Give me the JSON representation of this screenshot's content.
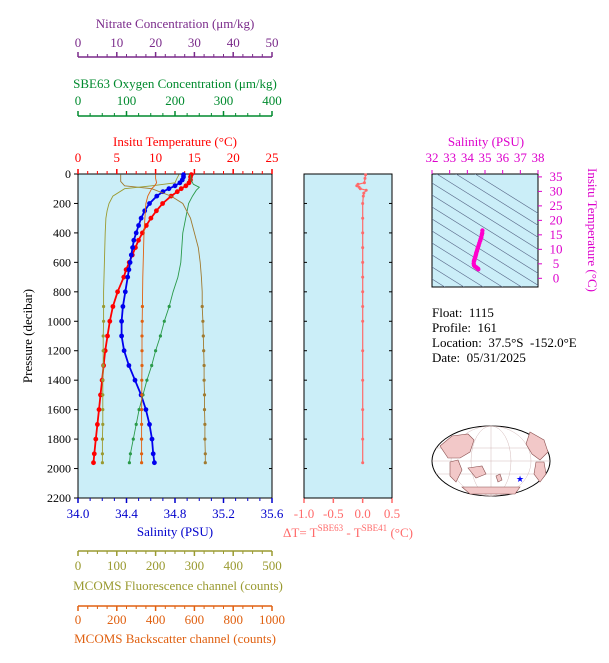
{
  "chart_data": [
    {
      "type": "line",
      "panel": "main-profile",
      "y_axis": {
        "label": "Pressure (decibar)",
        "range": [
          0,
          2200
        ],
        "reversed": true,
        "ticks": [
          0,
          200,
          400,
          600,
          800,
          1000,
          1200,
          1400,
          1600,
          1800,
          2000,
          2200
        ]
      },
      "axes": {
        "temperature": {
          "title": "Insitu Temperature (°C)",
          "range": [
            0,
            25
          ],
          "ticks": [
            0,
            5,
            10,
            15,
            20,
            25
          ],
          "color": "#ff0000",
          "position": "top"
        },
        "oxygen": {
          "title": "SBE63 Oxygen Concentration (μm/kg)",
          "range": [
            0,
            400
          ],
          "ticks": [
            0,
            100,
            200,
            300,
            400
          ],
          "color": "#008a2e",
          "position": "top"
        },
        "nitrate": {
          "title": "Nitrate Concentration (μm/kg)",
          "range": [
            0,
            50
          ],
          "ticks": [
            0,
            10,
            20,
            30,
            40,
            50
          ],
          "color": "#7a2a8a",
          "position": "top"
        },
        "salinity": {
          "title": "Salinity (PSU)",
          "range": [
            34.0,
            35.6
          ],
          "ticks": [
            "34.0",
            "34.4",
            "34.8",
            "35.2",
            "35.6"
          ],
          "color": "#0000cc",
          "position": "bottom"
        },
        "fluorescence": {
          "title": "MCOMS Fluorescence channel (counts)",
          "range": [
            0,
            500
          ],
          "ticks": [
            0,
            100,
            200,
            300,
            400,
            500
          ],
          "color": "#9a9a30",
          "position": "bottom"
        },
        "backscatter": {
          "title": "MCOMS Backscatter channel (counts)",
          "range": [
            0,
            1000
          ],
          "ticks": [
            0,
            200,
            400,
            600,
            800,
            1000
          ],
          "color": "#e06010",
          "position": "bottom"
        }
      },
      "series": [
        {
          "key": "temperature",
          "color": "#ff0000",
          "pressure": [
            5,
            20,
            40,
            60,
            80,
            100,
            120,
            150,
            200,
            250,
            300,
            350,
            400,
            450,
            500,
            550,
            600,
            650,
            700,
            800,
            900,
            1000,
            1100,
            1200,
            1300,
            1400,
            1500,
            1600,
            1700,
            1800,
            1900,
            1960
          ],
          "values": [
            14.6,
            14.5,
            14.5,
            14.3,
            13.9,
            13.3,
            12.8,
            12.0,
            10.9,
            10.1,
            9.4,
            8.8,
            8.3,
            7.8,
            7.4,
            7.0,
            6.6,
            6.2,
            5.9,
            5.1,
            4.5,
            4.1,
            3.8,
            3.5,
            3.3,
            3.1,
            2.9,
            2.7,
            2.5,
            2.3,
            2.1,
            2.0
          ]
        },
        {
          "key": "salinity",
          "color": "#0000ee",
          "pressure": [
            5,
            20,
            40,
            60,
            80,
            100,
            120,
            150,
            200,
            250,
            300,
            350,
            400,
            450,
            500,
            550,
            600,
            650,
            700,
            800,
            900,
            1000,
            1100,
            1200,
            1300,
            1400,
            1500,
            1600,
            1700,
            1800,
            1900,
            1960
          ],
          "values": [
            34.87,
            34.87,
            34.86,
            34.84,
            34.8,
            34.75,
            34.7,
            34.65,
            34.59,
            34.55,
            34.52,
            34.5,
            34.48,
            34.46,
            34.45,
            34.44,
            34.43,
            34.42,
            34.41,
            34.39,
            34.37,
            34.36,
            34.36,
            34.38,
            34.42,
            34.47,
            34.52,
            34.56,
            34.59,
            34.61,
            34.62,
            34.63
          ]
        },
        {
          "key": "oxygen",
          "color": "#2a9a4a",
          "thin": true,
          "pressure": [
            5,
            40,
            70,
            90,
            110,
            150,
            200,
            300,
            400,
            500,
            600,
            700,
            800,
            900,
            1000,
            1100,
            1200,
            1300,
            1400,
            1500,
            1600,
            1700,
            1800,
            1900,
            1960
          ],
          "values": [
            232,
            233,
            238,
            250,
            244,
            236,
            228,
            222,
            216,
            214,
            212,
            206,
            196,
            188,
            178,
            170,
            160,
            152,
            142,
            134,
            126,
            120,
            114,
            108,
            106
          ]
        },
        {
          "key": "nitrate",
          "color": "#a07a30",
          "thin": true,
          "pressure": [
            5,
            50,
            80,
            100,
            150,
            200,
            300,
            400,
            500,
            600,
            700,
            800,
            900,
            1000,
            1100,
            1200,
            1300,
            1400,
            1500,
            1600,
            1700,
            1800,
            1900,
            1960
          ],
          "values": [
            11,
            11,
            12,
            19,
            24,
            27,
            29,
            30,
            31,
            31.5,
            31.8,
            32,
            32,
            32.2,
            32.3,
            32.4,
            32.5,
            32.5,
            32.6,
            32.6,
            32.7,
            32.7,
            32.8,
            32.8
          ]
        },
        {
          "key": "fluorescence",
          "color": "#9a9a30",
          "thin": true,
          "pressure": [
            5,
            30,
            60,
            80,
            100,
            150,
            200,
            250,
            300,
            400,
            500,
            600,
            700,
            800,
            900,
            1000,
            1100,
            1200,
            1300,
            1400,
            1500,
            1600,
            1700,
            1800,
            1900,
            1960
          ],
          "values": [
            260,
            255,
            250,
            190,
            120,
            90,
            80,
            75,
            72,
            70,
            69,
            68,
            67,
            66,
            66,
            66,
            65,
            65,
            65,
            64,
            64,
            64,
            64,
            63,
            63,
            63
          ]
        },
        {
          "key": "backscatter",
          "color": "#e06010",
          "thin": true,
          "pressure": [
            5,
            30,
            60,
            80,
            100,
            150,
            200,
            300,
            400,
            500,
            600,
            700,
            800,
            900,
            1000,
            1100,
            1200,
            1300,
            1400,
            1500,
            1600,
            1700,
            1800,
            1900,
            1960
          ],
          "values": [
            400,
            400,
            405,
            395,
            380,
            360,
            350,
            345,
            340,
            338,
            336,
            334,
            333,
            332,
            331,
            330,
            330,
            330,
            329,
            329,
            328,
            328,
            328,
            328,
            328
          ]
        }
      ]
    },
    {
      "type": "line",
      "panel": "delta-t",
      "xlabel_parts": [
        "ΔT= T",
        "SBE63",
        " - T",
        "SBE41",
        " (°C)"
      ],
      "x_range": [
        -1.0,
        0.5
      ],
      "x_ticks": [
        "-1.0",
        "-0.5",
        "0.0",
        "0.5"
      ],
      "y_range": [
        0,
        2200
      ],
      "color": "#ff6a6a",
      "pressure": [
        5,
        30,
        60,
        70,
        80,
        90,
        100,
        110,
        130,
        150,
        200,
        300,
        400,
        500,
        600,
        700,
        800,
        900,
        1000,
        1200,
        1400,
        1600,
        1800,
        1960
      ],
      "values": [
        0.05,
        0.04,
        0.03,
        -0.08,
        -0.1,
        -0.06,
        -0.04,
        0.06,
        0.02,
        0.01,
        0.0,
        0.0,
        0.0,
        0.0,
        0.0,
        0.0,
        0.0,
        0.0,
        0.0,
        0.0,
        0.0,
        0.0,
        0.0,
        0.0
      ]
    },
    {
      "type": "scatter",
      "panel": "ts-diagram",
      "title": "Salinity (PSU)",
      "ylabel": "Insitu Temperature (°C)",
      "x_range": [
        32,
        38
      ],
      "x_ticks": [
        32,
        33,
        34,
        35,
        36,
        37,
        38
      ],
      "y_range": [
        -3,
        36
      ],
      "y_ticks": [
        0,
        5,
        10,
        15,
        20,
        25,
        30,
        35
      ],
      "color": "#ff00cc",
      "salinity": [
        34.85,
        34.84,
        34.82,
        34.79,
        34.75,
        34.72,
        34.68,
        34.64,
        34.6,
        34.57,
        34.54,
        34.51,
        34.49,
        34.47,
        34.45,
        34.43,
        34.41,
        34.39,
        34.37,
        34.36,
        34.38,
        34.43,
        34.5,
        34.56,
        34.6,
        34.62
      ],
      "temperature": [
        16.5,
        15.6,
        15.0,
        14.2,
        13.5,
        12.9,
        12.1,
        11.3,
        10.6,
        10.0,
        9.4,
        8.8,
        8.3,
        7.8,
        7.4,
        7.0,
        6.6,
        6.2,
        5.9,
        5.1,
        4.5,
        4.1,
        3.8,
        3.5,
        3.3,
        3.1
      ]
    }
  ],
  "info": {
    "float": "Float:  1115",
    "profile": "Profile:  161",
    "location": "Location:  37.5°S  -152.0°E",
    "date": "Date:  05/31/2025"
  },
  "map": {
    "marker_color": "#0000ff",
    "land_color": "#f2c8c8",
    "ocean_color": "#ffffff"
  }
}
